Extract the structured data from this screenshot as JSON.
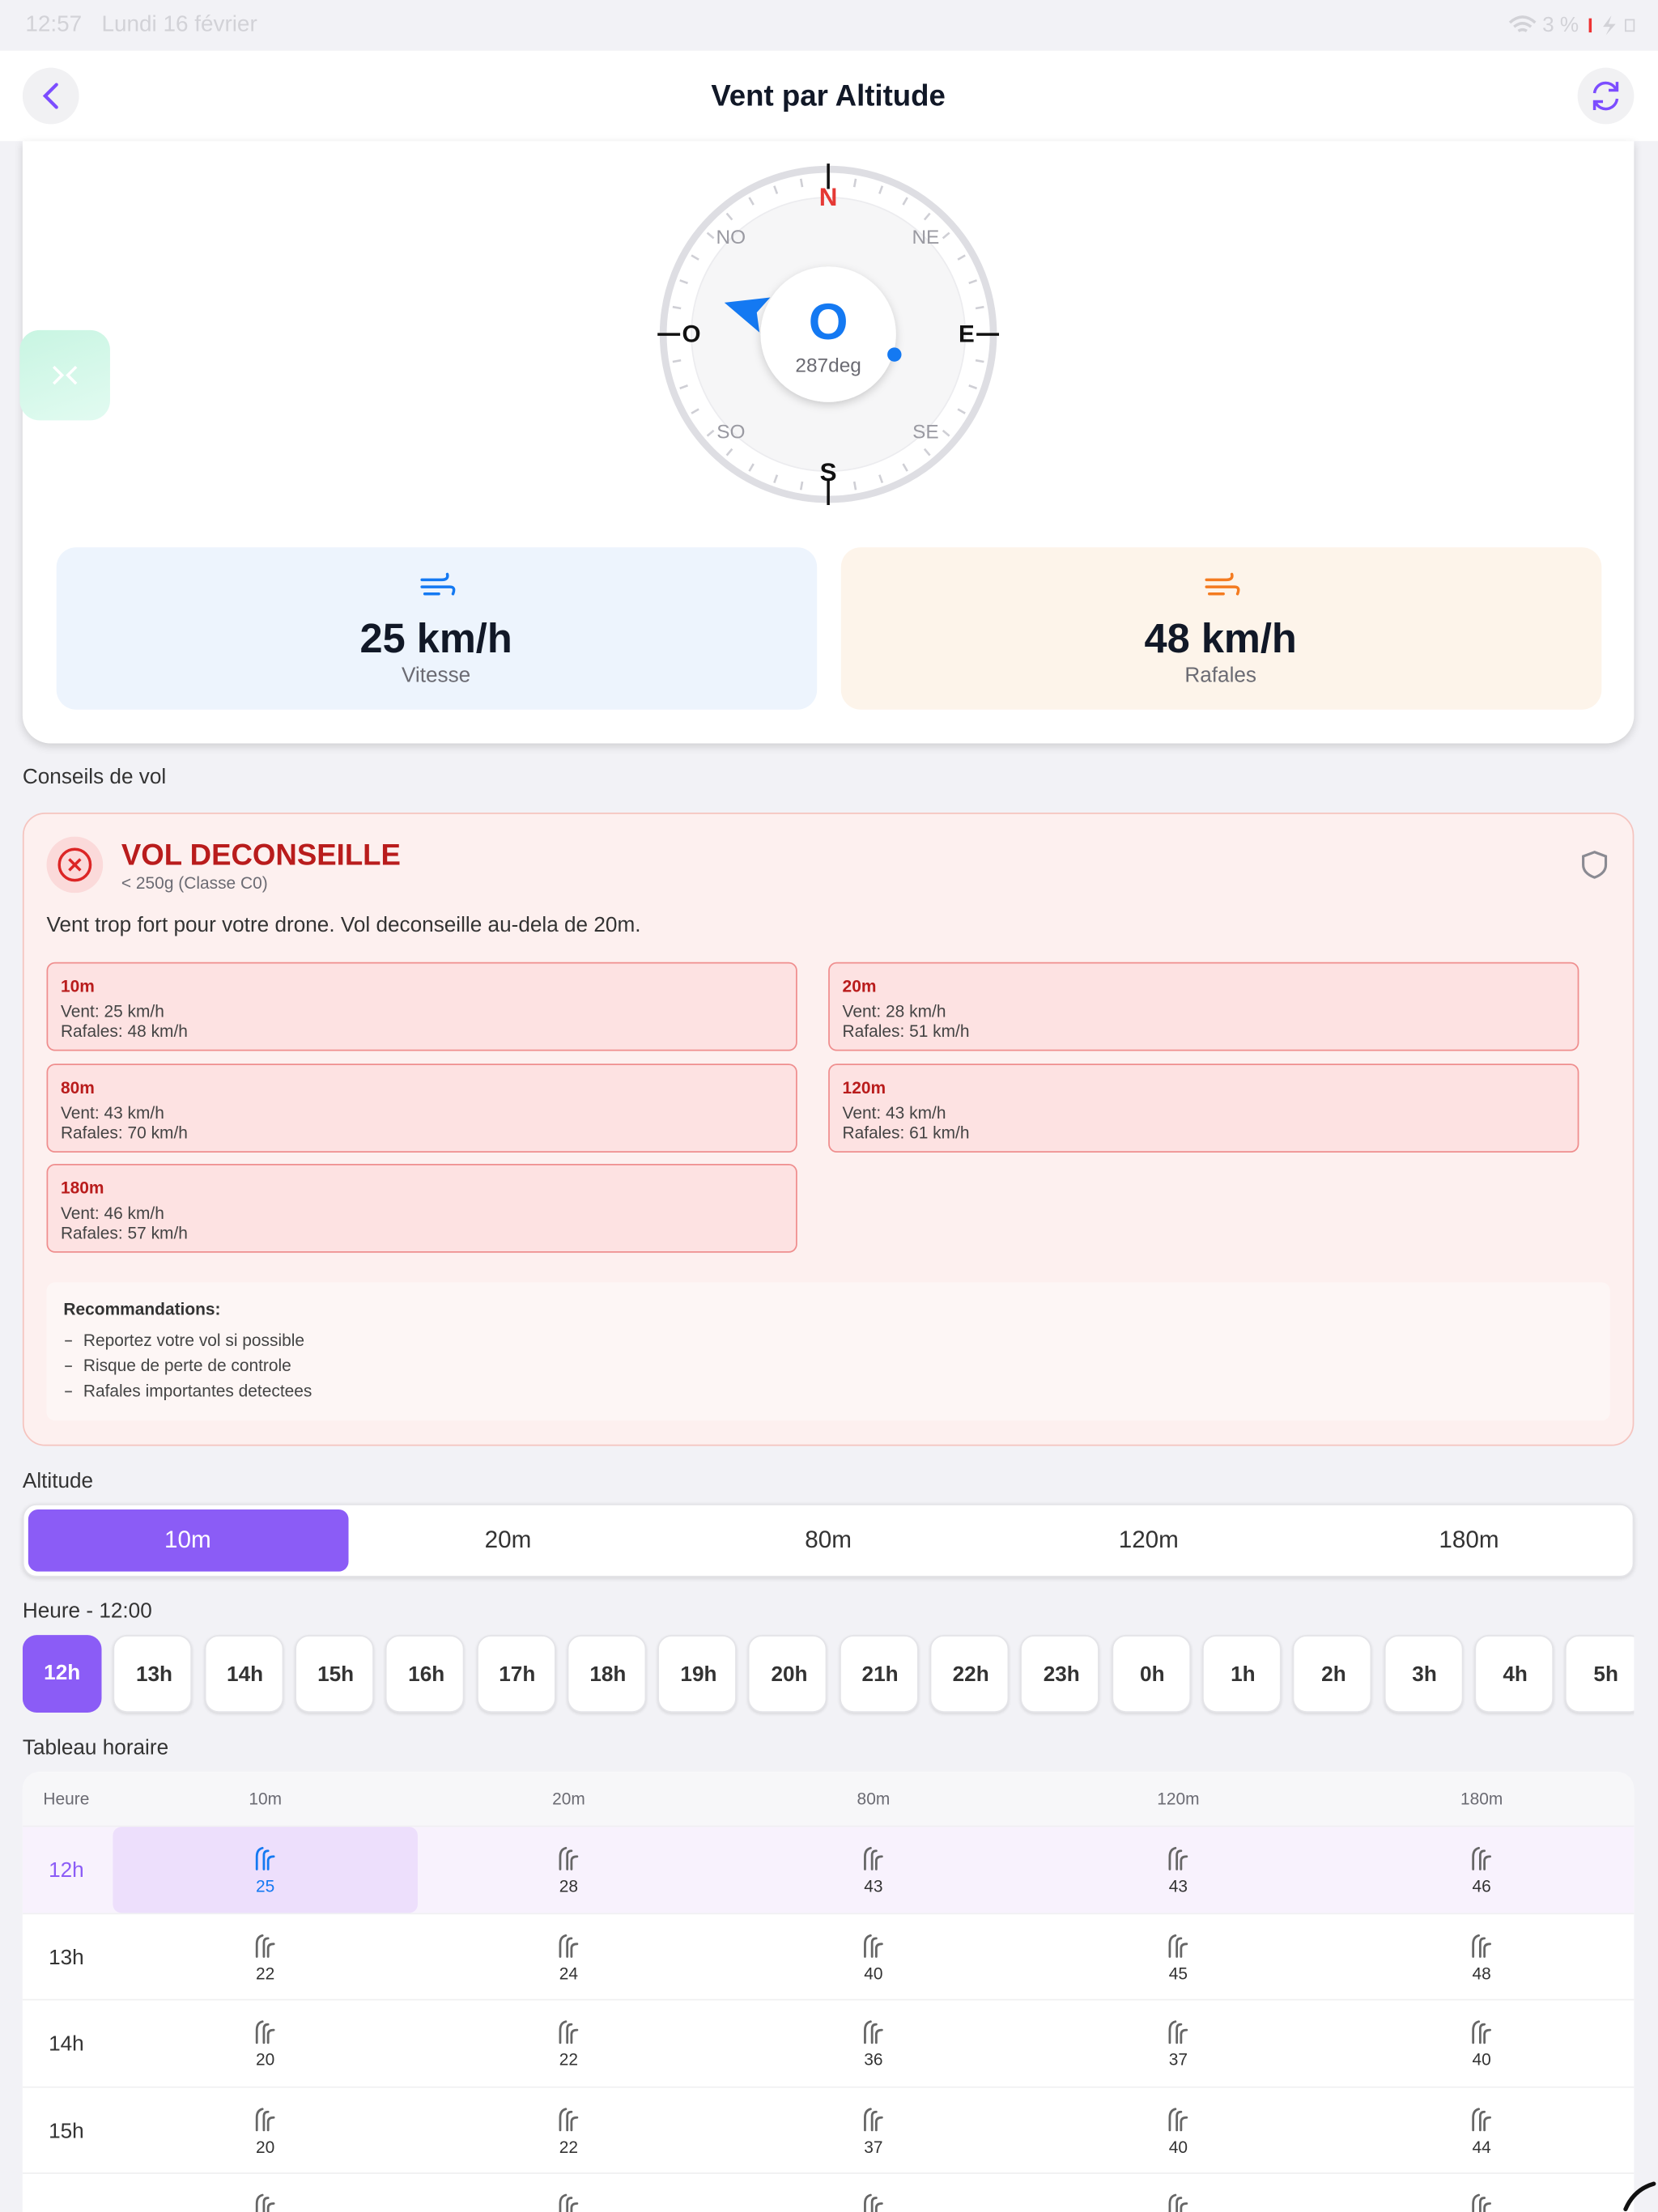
{
  "status_bar": {
    "time": "12:57",
    "date": "Lundi 16 février",
    "battery": "3 %"
  },
  "header": {
    "title": "Vent par Altitude"
  },
  "compass": {
    "north": "N",
    "northeast": "NE",
    "east": "E",
    "southeast": "SE",
    "south": "S",
    "southwest": "SO",
    "west": "O",
    "northwest": "NO",
    "direction": "O",
    "degrees": "287deg"
  },
  "stats": [
    {
      "value": "25 km/h",
      "label": "Vitesse"
    },
    {
      "value": "48 km/h",
      "label": "Rafales"
    }
  ],
  "advice_section": {
    "title": "Conseils de vol"
  },
  "advice": {
    "status": "VOL DECONSEILLE",
    "drone_class": "< 250g (Classe C0)",
    "message": "Vent trop fort pour votre drone. Vol deconseille au-dela de 20m.",
    "altitudes": [
      {
        "altitude": "10m",
        "wind": "Vent: 25 km/h",
        "gusts": "Rafales: 48 km/h"
      },
      {
        "altitude": "20m",
        "wind": "Vent: 28 km/h",
        "gusts": "Rafales: 51 km/h"
      },
      {
        "altitude": "80m",
        "wind": "Vent: 43 km/h",
        "gusts": "Rafales: 70 km/h"
      },
      {
        "altitude": "120m",
        "wind": "Vent: 43 km/h",
        "gusts": "Rafales: 61 km/h"
      },
      {
        "altitude": "180m",
        "wind": "Vent: 46 km/h",
        "gusts": "Rafales: 57 km/h"
      }
    ],
    "recommendations_title": "Recommandations:",
    "recommendations": [
      "Reportez votre vol si possible",
      "Risque de perte de controle",
      "Rafales importantes detectees"
    ]
  },
  "altitude_selector": {
    "title": "Altitude",
    "options": [
      "10m",
      "20m",
      "80m",
      "120m",
      "180m"
    ],
    "selected": 0
  },
  "hour_selector": {
    "title": "Heure - 12:00",
    "hours": [
      "12h",
      "13h",
      "14h",
      "15h",
      "16h",
      "17h",
      "18h",
      "19h",
      "20h",
      "21h",
      "22h",
      "23h",
      "0h",
      "1h",
      "2h",
      "3h",
      "4h",
      "5h"
    ],
    "selected": 0
  },
  "table": {
    "title": "Tableau horaire",
    "columns": [
      "Heure",
      "10m",
      "20m",
      "80m",
      "120m",
      "180m"
    ],
    "selected_column": 1,
    "rows": [
      [
        "12h",
        25,
        28,
        43,
        43,
        46
      ],
      [
        "13h",
        22,
        24,
        40,
        45,
        48
      ],
      [
        "14h",
        20,
        22,
        36,
        37,
        40
      ],
      [
        "15h",
        20,
        22,
        37,
        40,
        44
      ]
    ]
  }
}
